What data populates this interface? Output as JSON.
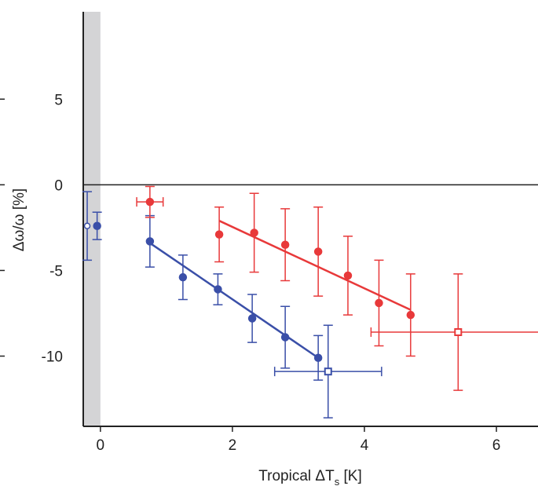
{
  "chart_data": {
    "type": "scatter",
    "x_label": {
      "main": "Tropical ΔT",
      "sub": "s",
      "unit": " [K]"
    },
    "y_label": "Δω/ω [%]",
    "xlim": [
      -0.26,
      6.63
    ],
    "ylim": [
      -14.1,
      10.1
    ],
    "xticks": [
      0,
      2,
      4,
      6
    ],
    "yticks": [
      -10,
      -5,
      0,
      5
    ],
    "shaded_x": [
      -0.26,
      0
    ],
    "zero_line": true,
    "series": [
      {
        "color": "#3a4fa8",
        "marker": "open-circle",
        "x": [
          -0.2
        ],
        "values": [
          -2.4
        ],
        "yerr": [
          2.0
        ]
      },
      {
        "color": "#3a4fa8",
        "marker": "circle",
        "x": [
          -0.05,
          0.75,
          1.25,
          1.78,
          2.3,
          2.8,
          3.3
        ],
        "values": [
          -2.4,
          -3.3,
          -5.4,
          -6.1,
          -7.8,
          -8.9,
          -10.1
        ],
        "yerr": [
          0.8,
          1.5,
          1.3,
          0.9,
          1.4,
          1.8,
          1.3
        ]
      },
      {
        "color": "#3a4fa8",
        "marker": "open-square",
        "x": [
          3.45
        ],
        "values": [
          -10.9
        ],
        "yerr": [
          2.7
        ],
        "xerr": [
          0.81
        ]
      },
      {
        "color": "#e8393a",
        "marker": "circle",
        "x": [
          0.75
        ],
        "values": [
          -1.0
        ],
        "yerr": [
          0.9
        ],
        "xerr": [
          0.2
        ]
      },
      {
        "color": "#e8393a",
        "marker": "circle",
        "x": [
          1.8,
          2.33,
          2.8,
          3.3,
          3.75,
          4.22,
          4.7
        ],
        "values": [
          -2.9,
          -2.8,
          -3.5,
          -3.9,
          -5.3,
          -6.9,
          -7.6
        ],
        "yerr": [
          1.6,
          2.3,
          2.1,
          2.6,
          2.3,
          2.5,
          2.4
        ]
      },
      {
        "color": "#e8393a",
        "marker": "open-square",
        "x": [
          5.42
        ],
        "values": [
          -8.6
        ],
        "yerr": [
          3.4
        ],
        "xerr": [
          1.32
        ]
      }
    ],
    "fits": [
      {
        "color": "#3a4fa8",
        "x": [
          0.75,
          3.3
        ],
        "values": [
          -3.4,
          -10.1
        ]
      },
      {
        "color": "#e8393a",
        "x": [
          1.8,
          4.7
        ],
        "values": [
          -2.1,
          -7.3
        ]
      }
    ]
  }
}
